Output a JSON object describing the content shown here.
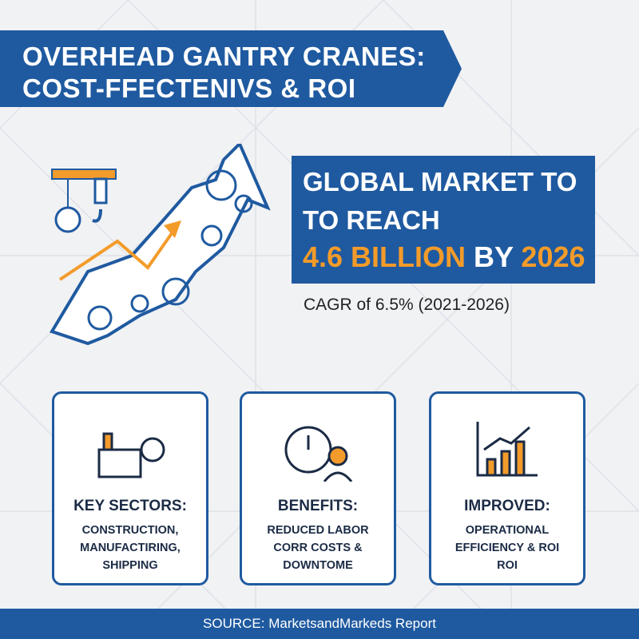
{
  "header": {
    "title_lines": [
      "OVERHEAD GANTRY CRANES:",
      "COST-FFECTENIVS & ROI"
    ]
  },
  "headline": {
    "line1": "GLOBAL MARKET TO",
    "line2": "TO REACH",
    "amount": "4.6 BILLION",
    "by": "BY",
    "year": "2026"
  },
  "cagr": "CAGR of 6.5% (2021-2026)",
  "cards": [
    {
      "title": "KEY SECTORS:",
      "lines": [
        "CONSTRUCTION,",
        "MANUFACTIRING,",
        "SHIPPING"
      ]
    },
    {
      "title": "BENEFITS:",
      "lines": [
        "REDUCED LABOR",
        "CORR COSTS &",
        "DOWNTOME"
      ]
    },
    {
      "title": "IMPROVED:",
      "lines": [
        "OPERATIONAL",
        "EFFICIENCY & ROI",
        "ROI"
      ]
    }
  ],
  "footer": "SOURCE: MarketsandMarkeds Report"
}
